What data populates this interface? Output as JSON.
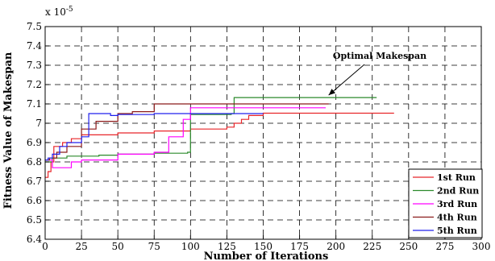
{
  "chart_data": {
    "type": "line",
    "title": "",
    "xlabel": "Number of Iterations",
    "ylabel": "Fitness Value of Makespan",
    "xlim": [
      0,
      300
    ],
    "ylim": [
      6.4,
      7.5
    ],
    "xticks": [
      "0",
      "25",
      "50",
      "75",
      "100",
      "125",
      "150",
      "175",
      "200",
      "225",
      "250",
      "275",
      "300"
    ],
    "yticks": [
      "6.4",
      "6.5",
      "6.6",
      "6.7",
      "6.8",
      "6.9",
      "7",
      "7.1",
      "7.2",
      "7.3",
      "7.4",
      "7.5"
    ],
    "y_multiplier_label": "x 10",
    "y_multiplier_exponent": "-5",
    "grid": true,
    "legend_position": "bottom-right",
    "line_style": "step",
    "annotation": {
      "text": "Optimal Makespan",
      "points_to_series": "2nd Run",
      "at_x": 195,
      "at_y": 7.133
    },
    "series": [
      {
        "name": "1st Run",
        "color": "#e8262a",
        "x": [
          0,
          2,
          4,
          6,
          12,
          18,
          25,
          50,
          75,
          100,
          115,
          125,
          130,
          135,
          140,
          150,
          240
        ],
        "y": [
          6.72,
          6.75,
          6.8,
          6.88,
          6.9,
          6.92,
          6.94,
          6.95,
          6.96,
          6.97,
          6.97,
          6.98,
          7.0,
          7.02,
          7.04,
          7.052,
          7.052
        ]
      },
      {
        "name": "2nd Run",
        "color": "#2b8a2b",
        "x": [
          0,
          5,
          15,
          25,
          37,
          50,
          75,
          98,
          100,
          128,
          130,
          228
        ],
        "y": [
          6.8,
          6.82,
          6.83,
          6.83,
          6.835,
          6.84,
          6.845,
          6.85,
          7.045,
          7.05,
          7.133,
          7.133
        ]
      },
      {
        "name": "3rd Run",
        "color": "#ff00ff",
        "x": [
          0,
          5,
          18,
          25,
          50,
          75,
          85,
          95,
          100,
          193
        ],
        "y": [
          6.81,
          6.77,
          6.8,
          6.81,
          6.84,
          6.85,
          6.93,
          7.02,
          7.08,
          7.08
        ]
      },
      {
        "name": "4th Run",
        "color": "#8b1a1a",
        "x": [
          0,
          3,
          8,
          15,
          25,
          35,
          50,
          60,
          75,
          100,
          130,
          195
        ],
        "y": [
          6.81,
          6.82,
          6.85,
          6.88,
          6.97,
          7.01,
          7.05,
          7.06,
          7.1,
          7.1,
          7.1,
          7.1
        ]
      },
      {
        "name": "5th Run",
        "color": "#2020ee",
        "x": [
          0,
          2,
          5,
          10,
          15,
          25,
          30,
          45,
          50,
          75,
          100,
          150
        ],
        "y": [
          6.81,
          6.82,
          6.84,
          6.88,
          6.9,
          6.93,
          7.05,
          7.04,
          7.045,
          7.05,
          7.05,
          7.05
        ]
      }
    ]
  }
}
